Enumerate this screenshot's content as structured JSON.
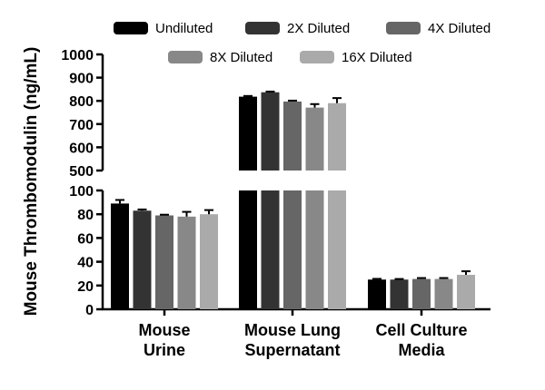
{
  "chart_data": {
    "type": "bar",
    "title": "",
    "xlabel": "",
    "ylabel": "Mouse Thrombomodulin (ng/mL)",
    "axis_break": true,
    "lower_ylim": [
      0,
      100
    ],
    "upper_ylim": [
      500,
      1000
    ],
    "lower_ticks": [
      "0",
      "20",
      "40",
      "60",
      "80",
      "100"
    ],
    "upper_ticks": [
      "500",
      "600",
      "700",
      "800",
      "900",
      "1000"
    ],
    "categories": [
      [
        "Mouse",
        "Urine"
      ],
      [
        "Mouse Lung",
        "Supernatant"
      ],
      [
        "Cell Culture",
        "Media"
      ]
    ],
    "series": [
      {
        "name": "Undiluted",
        "color": "#000000",
        "values": [
          89,
          818,
          25
        ],
        "errors": [
          3,
          3,
          0.6
        ]
      },
      {
        "name": "2X Diluted",
        "color": "#333333",
        "values": [
          83,
          837,
          25
        ],
        "errors": [
          1,
          3,
          0.5
        ]
      },
      {
        "name": "4X Diluted",
        "color": "#666666",
        "values": [
          79,
          797,
          25.5
        ],
        "errors": [
          0.6,
          4,
          0.8
        ]
      },
      {
        "name": "8X Diluted",
        "color": "#888888",
        "values": [
          78,
          771,
          25.5
        ],
        "errors": [
          4,
          15,
          0.8
        ]
      },
      {
        "name": "16X Diluted",
        "color": "#aaaaaa",
        "values": [
          80,
          790,
          29
        ],
        "errors": [
          3.5,
          22,
          3
        ]
      }
    ]
  }
}
